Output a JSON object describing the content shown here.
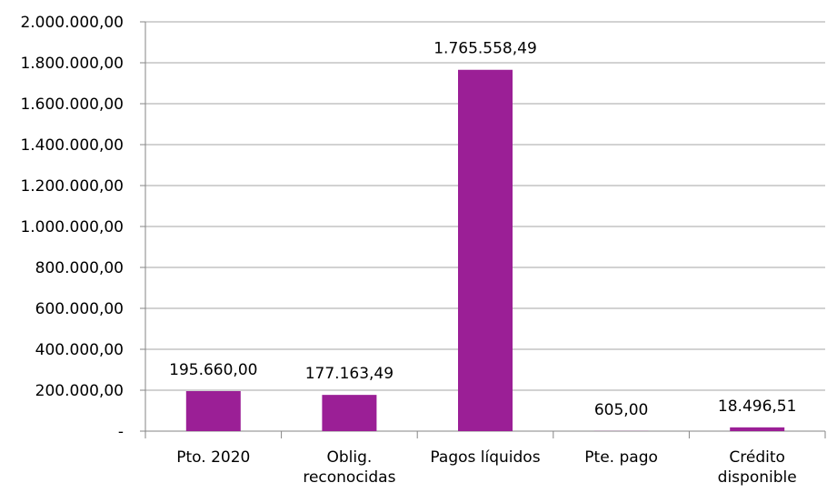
{
  "chart_data": {
    "type": "bar",
    "title": "",
    "xlabel": "",
    "ylabel": "",
    "ylim": [
      0,
      2000000
    ],
    "grid": true,
    "legend": "none",
    "bar_color": "#9B1F96",
    "categories": [
      [
        "Pto. 2020"
      ],
      [
        "Oblig.",
        "reconocidas"
      ],
      [
        "Pagos líquidos"
      ],
      [
        "Pte. pago"
      ],
      [
        "Crédito",
        "disponible"
      ]
    ],
    "values": [
      195660.0,
      177163.49,
      1765558.49,
      605.0,
      18496.51
    ],
    "data_labels": [
      "195.660,00",
      "177.163,49",
      "1.765.558,49",
      "605,00",
      "18.496,51"
    ],
    "yticks": [
      0,
      200000,
      400000,
      600000,
      800000,
      1000000,
      1200000,
      1400000,
      1600000,
      1800000,
      2000000
    ],
    "ytick_labels": [
      "-",
      "200.000,00",
      "400.000,00",
      "600.000,00",
      "800.000,00",
      "1.000.000,00",
      "1.200.000,00",
      "1.400.000,00",
      "1.600.000,00",
      "1.800.000,00",
      "2.000.000,00"
    ]
  }
}
